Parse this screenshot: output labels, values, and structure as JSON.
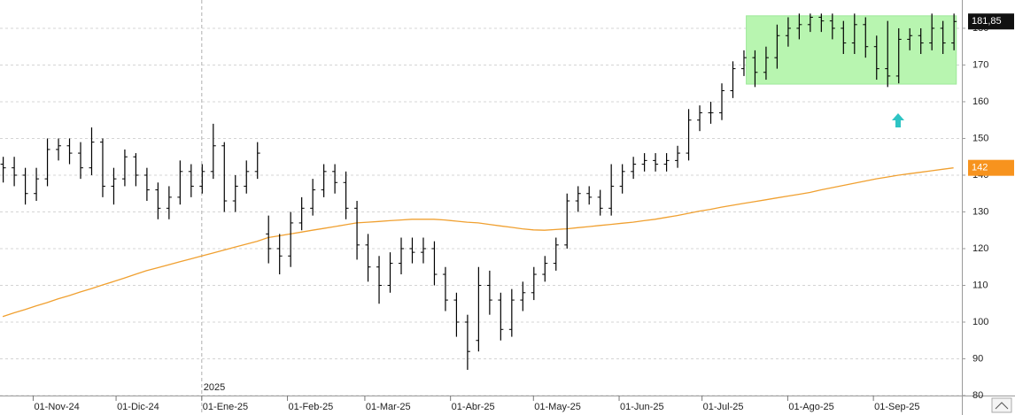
{
  "chart_data": {
    "type": "ohlc",
    "color": "#000000",
    "xlim": [
      "2024-10-20",
      "2025-10-03"
    ],
    "ylim": [
      80,
      187.7
    ],
    "yticks": [
      80,
      90,
      100,
      110,
      120,
      130,
      140,
      150,
      160,
      170,
      180
    ],
    "grid": true,
    "xticks": [
      {
        "value": "2024-11-01",
        "label": "01-Nov-24"
      },
      {
        "value": "2024-12-01",
        "label": "01-Dic-24"
      },
      {
        "value": "2025-01-01",
        "label": "01-Ene-25"
      },
      {
        "value": "2025-02-01",
        "label": "01-Feb-25"
      },
      {
        "value": "2025-03-01",
        "label": "01-Mar-25"
      },
      {
        "value": "2025-04-01",
        "label": "01-Abr-25"
      },
      {
        "value": "2025-05-01",
        "label": "01-May-25"
      },
      {
        "value": "2025-06-01",
        "label": "01-Jun-25"
      },
      {
        "value": "2025-07-01",
        "label": "01-Jul-25"
      },
      {
        "value": "2025-08-01",
        "label": "01-Ago-25"
      },
      {
        "value": "2025-09-01",
        "label": "01-Sep-25"
      }
    ],
    "year_marker": {
      "value": "2025-01-01",
      "label": "2025"
    },
    "x": [
      "2024-10-21",
      "2024-10-25",
      "2024-10-29",
      "2024-11-02",
      "2024-11-06",
      "2024-11-10",
      "2024-11-14",
      "2024-11-18",
      "2024-11-22",
      "2024-11-26",
      "2024-11-30",
      "2024-12-04",
      "2024-12-08",
      "2024-12-12",
      "2024-12-16",
      "2024-12-20",
      "2024-12-24",
      "2024-12-28",
      "2025-01-01",
      "2025-01-05",
      "2025-01-09",
      "2025-01-13",
      "2025-01-17",
      "2025-01-21",
      "2025-01-25",
      "2025-01-29",
      "2025-02-02",
      "2025-02-06",
      "2025-02-10",
      "2025-02-14",
      "2025-02-18",
      "2025-02-22",
      "2025-02-26",
      "2025-03-02",
      "2025-03-06",
      "2025-03-10",
      "2025-03-14",
      "2025-03-18",
      "2025-03-22",
      "2025-03-26",
      "2025-03-30",
      "2025-04-03",
      "2025-04-07",
      "2025-04-11",
      "2025-04-15",
      "2025-04-19",
      "2025-04-23",
      "2025-04-27",
      "2025-05-01",
      "2025-05-05",
      "2025-05-09",
      "2025-05-13",
      "2025-05-17",
      "2025-05-21",
      "2025-05-25",
      "2025-05-29",
      "2025-06-02",
      "2025-06-06",
      "2025-06-10",
      "2025-06-14",
      "2025-06-18",
      "2025-06-22",
      "2025-06-26",
      "2025-06-30",
      "2025-07-04",
      "2025-07-08",
      "2025-07-12",
      "2025-07-16",
      "2025-07-20",
      "2025-07-24",
      "2025-07-28",
      "2025-08-01",
      "2025-08-05",
      "2025-08-09",
      "2025-08-13",
      "2025-08-17",
      "2025-08-21",
      "2025-08-25",
      "2025-08-29",
      "2025-09-02",
      "2025-09-06",
      "2025-09-10",
      "2025-09-14",
      "2025-09-18",
      "2025-09-22",
      "2025-09-26",
      "2025-09-30"
    ],
    "open": [
      143,
      142,
      140,
      135,
      139,
      147,
      148,
      146,
      142,
      149,
      137,
      139,
      145,
      140,
      136,
      131,
      134,
      141,
      137,
      141,
      148,
      133,
      137,
      141,
      124,
      120,
      118,
      127,
      131,
      136,
      141,
      138,
      131,
      121,
      115,
      110,
      116,
      120,
      119,
      120,
      113,
      106,
      100,
      95,
      110,
      106,
      98,
      106,
      108,
      113,
      116,
      121,
      133,
      135,
      134,
      131,
      137,
      141,
      143,
      144,
      143,
      144,
      146,
      155,
      157,
      157,
      163,
      169,
      172,
      168,
      172,
      178,
      180,
      181,
      183,
      182,
      180,
      176,
      181,
      175,
      169,
      167,
      177,
      178,
      176,
      180,
      176
    ],
    "high": [
      145,
      145,
      142,
      142,
      150,
      150,
      150,
      149,
      153,
      150,
      142,
      147,
      146,
      142,
      138,
      137,
      144,
      143,
      143,
      154,
      149,
      140,
      144,
      149,
      129,
      124,
      130,
      134,
      139,
      143,
      143,
      141,
      133,
      124,
      118,
      119,
      123,
      123,
      123,
      122,
      115,
      108,
      102,
      115,
      114,
      108,
      109,
      111,
      115,
      118,
      123,
      135,
      137,
      137,
      136,
      143,
      143,
      145,
      146,
      146,
      146,
      148,
      158,
      159,
      160,
      165,
      171,
      174,
      174,
      175,
      181,
      183,
      184,
      184,
      184,
      184,
      182,
      184,
      183,
      178,
      182,
      180,
      180,
      180,
      184,
      182,
      184
    ],
    "low": [
      138,
      137,
      132,
      133,
      137,
      144,
      143,
      139,
      140,
      134,
      132,
      137,
      137,
      133,
      128,
      128,
      132,
      134,
      135,
      139,
      130,
      130,
      135,
      139,
      116,
      113,
      115,
      125,
      129,
      134,
      135,
      128,
      117,
      111,
      105,
      108,
      113,
      116,
      116,
      110,
      103,
      96,
      87,
      92,
      102,
      95,
      96,
      103,
      106,
      111,
      114,
      120,
      130,
      132,
      129,
      129,
      135,
      139,
      141,
      141,
      141,
      142,
      144,
      152,
      154,
      155,
      161,
      167,
      164,
      166,
      169,
      175,
      177,
      179,
      179,
      177,
      173,
      173,
      172,
      166,
      164,
      165,
      174,
      173,
      174,
      173,
      174
    ],
    "close": [
      142,
      140,
      135,
      139,
      147,
      148,
      146,
      142,
      149,
      137,
      139,
      145,
      140,
      136,
      131,
      134,
      141,
      137,
      141,
      148,
      133,
      137,
      141,
      146,
      120,
      118,
      127,
      131,
      136,
      141,
      138,
      131,
      121,
      115,
      110,
      116,
      120,
      119,
      120,
      113,
      106,
      100,
      92,
      110,
      106,
      98,
      106,
      108,
      113,
      116,
      121,
      133,
      135,
      134,
      131,
      137,
      141,
      143,
      144,
      143,
      144,
      146,
      155,
      157,
      157,
      163,
      169,
      172,
      168,
      172,
      178,
      180,
      181,
      183,
      182,
      180,
      176,
      181,
      175,
      169,
      167,
      177,
      178,
      176,
      180,
      176,
      181.85
    ],
    "moving_average": {
      "color": "#f0a030",
      "values": [
        101.5,
        102.5,
        103.4,
        104.4,
        105.3,
        106.3,
        107.2,
        108.2,
        109.1,
        110.1,
        111,
        112,
        113,
        114,
        114.8,
        115.6,
        116.4,
        117.2,
        118,
        118.8,
        119.6,
        120.4,
        121.2,
        122,
        123,
        123.5,
        124,
        124.5,
        125,
        125.5,
        126,
        126.5,
        127,
        127.2,
        127.4,
        127.6,
        127.8,
        128,
        128,
        128,
        127.8,
        127.5,
        127.2,
        127,
        126.6,
        126.2,
        125.8,
        125.4,
        125.1,
        125,
        125.2,
        125.4,
        125.7,
        126,
        126.3,
        126.6,
        126.9,
        127.2,
        127.6,
        128,
        128.5,
        129,
        129.6,
        130.2,
        130.7,
        131.3,
        131.8,
        132.3,
        132.8,
        133.3,
        133.8,
        134.3,
        134.8,
        135.3,
        136,
        136.6,
        137.2,
        137.8,
        138.4,
        139,
        139.5,
        140,
        140.4,
        140.8,
        141.2,
        141.6,
        142
      ]
    },
    "box": {
      "x": [
        "2025-07-17",
        "2025-10-01"
      ],
      "y": [
        164.8,
        183.4
      ],
      "color": "#b8f5b0"
    },
    "price_tags": [
      {
        "value": 181.85,
        "label": "181,85",
        "color": "#111111"
      },
      {
        "value": 142,
        "label": "142",
        "color": "#f7931e"
      }
    ]
  }
}
